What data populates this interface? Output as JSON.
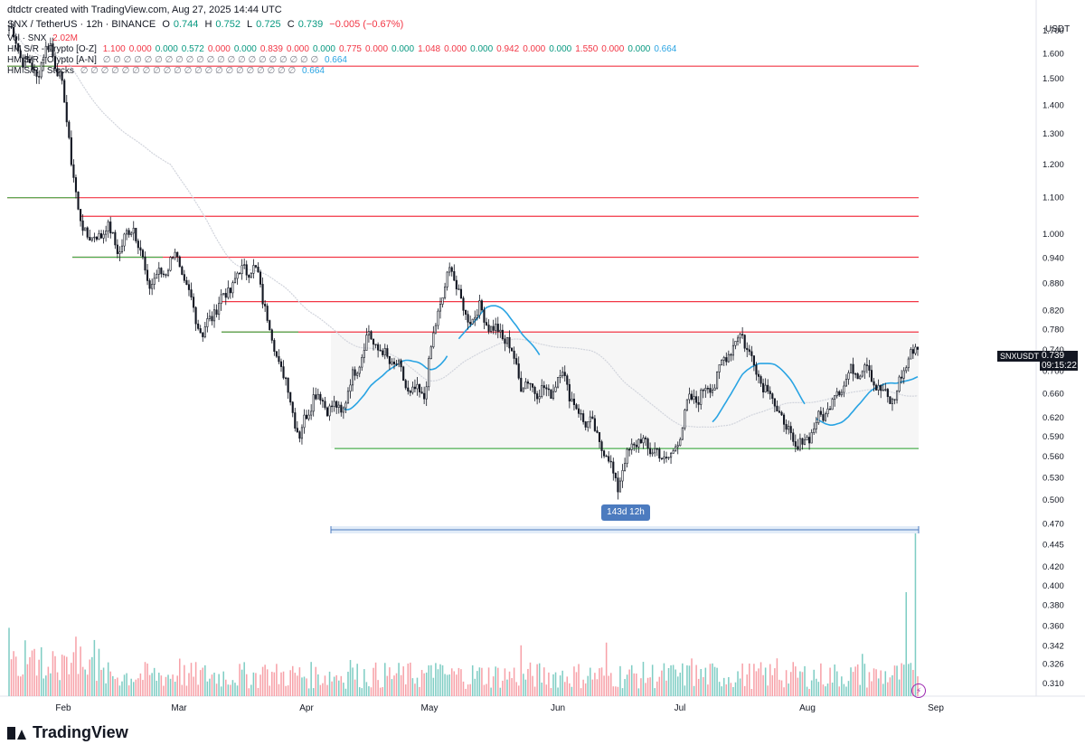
{
  "header": {
    "credit": "dtdctr created with TradingView.com, Aug 27, 2025 14:44 UTC",
    "symbol": "SNX / TetherUS · 12h · BINANCE",
    "ohlc": {
      "o_label": "O",
      "o": "0.744",
      "h_label": "H",
      "h": "0.752",
      "l_label": "L",
      "l": "0.725",
      "c_label": "C",
      "c": "0.739",
      "change": "−0.005 (−0.67%)"
    },
    "volume_label": "Vol · SNX",
    "volume_value": "2.02M",
    "indicators": [
      {
        "name": "HM S/R - Crypto [O-Z]",
        "values": [
          {
            "v": "1.100",
            "c": "red"
          },
          {
            "v": "0.000",
            "c": "red"
          },
          {
            "v": "0.000",
            "c": "green"
          },
          {
            "v": "0.572",
            "c": "green"
          },
          {
            "v": "0.000",
            "c": "red"
          },
          {
            "v": "0.000",
            "c": "green"
          },
          {
            "v": "0.839",
            "c": "red"
          },
          {
            "v": "0.000",
            "c": "red"
          },
          {
            "v": "0.000",
            "c": "green"
          },
          {
            "v": "0.775",
            "c": "red"
          },
          {
            "v": "0.000",
            "c": "red"
          },
          {
            "v": "0.000",
            "c": "green"
          },
          {
            "v": "1.048",
            "c": "red"
          },
          {
            "v": "0.000",
            "c": "red"
          },
          {
            "v": "0.000",
            "c": "green"
          },
          {
            "v": "0.942",
            "c": "red"
          },
          {
            "v": "0.000",
            "c": "red"
          },
          {
            "v": "0.000",
            "c": "green"
          },
          {
            "v": "1.550",
            "c": "red"
          },
          {
            "v": "0.000",
            "c": "red"
          },
          {
            "v": "0.000",
            "c": "green"
          },
          {
            "v": "0.664",
            "c": "blue"
          }
        ]
      },
      {
        "name": "HM S/R - Crypto [A-N]",
        "empty_glyphs": "∅ ∅ ∅ ∅ ∅ ∅ ∅ ∅ ∅ ∅ ∅ ∅ ∅ ∅ ∅ ∅ ∅ ∅ ∅ ∅ ∅",
        "value": "0.664"
      },
      {
        "name": "HM S/R - Stocks",
        "empty_glyphs": "∅ ∅ ∅ ∅ ∅ ∅ ∅ ∅ ∅ ∅ ∅ ∅ ∅ ∅ ∅ ∅ ∅ ∅ ∅ ∅ ∅",
        "value": "0.664"
      }
    ]
  },
  "price_scale_currency": "USDT",
  "price_tag": {
    "symbol": "SNXUSDT",
    "price": "0.739",
    "countdown": "09:15:22"
  },
  "measure_label": "143d 12h",
  "branding": "TradingView",
  "colors": {
    "up": "#089981",
    "down": "#f23645",
    "candle": "#131722",
    "ma": "#2aa4e3",
    "resistance": "#f23645",
    "support": "#4caf50"
  },
  "chart_data": {
    "type": "candlestick",
    "y_scale": "log",
    "y_ticks": [
      1.7,
      1.6,
      1.5,
      1.4,
      1.3,
      1.2,
      1.1,
      1.0,
      0.94,
      0.88,
      0.82,
      0.78,
      0.74,
      0.7,
      0.66,
      0.62,
      0.59,
      0.56,
      0.53,
      0.5,
      0.47,
      0.445,
      0.42,
      0.4,
      0.38,
      0.36,
      0.342,
      0.326,
      0.31
    ],
    "x_ticks": [
      "Feb",
      "Mar",
      "Apr",
      "May",
      "Jun",
      "Jul",
      "Aug",
      "Sep"
    ],
    "horizontal_levels": [
      {
        "price": 1.55,
        "kind": "resistance"
      },
      {
        "price": 1.1,
        "kind": "resistance"
      },
      {
        "price": 1.048,
        "kind": "resistance"
      },
      {
        "price": 0.942,
        "kind": "resistance"
      },
      {
        "price": 0.839,
        "kind": "resistance"
      },
      {
        "price": 0.775,
        "kind": "resistance"
      },
      {
        "price": 0.572,
        "kind": "support"
      }
    ],
    "range_box": {
      "top": 0.775,
      "bottom": 0.572
    },
    "price_anchors": [
      [
        0,
        1.72
      ],
      [
        6,
        1.58
      ],
      [
        12,
        1.52
      ],
      [
        18,
        1.65
      ],
      [
        24,
        1.42
      ],
      [
        30,
        1.05
      ],
      [
        36,
        0.98
      ],
      [
        42,
        1.02
      ],
      [
        48,
        0.96
      ],
      [
        54,
        1.03
      ],
      [
        60,
        0.88
      ],
      [
        66,
        0.9
      ],
      [
        72,
        0.95
      ],
      [
        78,
        0.85
      ],
      [
        84,
        0.77
      ],
      [
        90,
        0.83
      ],
      [
        96,
        0.87
      ],
      [
        102,
        0.92
      ],
      [
        108,
        0.9
      ],
      [
        114,
        0.76
      ],
      [
        120,
        0.68
      ],
      [
        126,
        0.59
      ],
      [
        132,
        0.66
      ],
      [
        138,
        0.64
      ],
      [
        144,
        0.63
      ],
      [
        150,
        0.7
      ],
      [
        156,
        0.77
      ],
      [
        162,
        0.73
      ],
      [
        168,
        0.71
      ],
      [
        174,
        0.66
      ],
      [
        180,
        0.66
      ],
      [
        186,
        0.82
      ],
      [
        192,
        0.92
      ],
      [
        198,
        0.8
      ],
      [
        204,
        0.82
      ],
      [
        210,
        0.78
      ],
      [
        216,
        0.76
      ],
      [
        222,
        0.68
      ],
      [
        228,
        0.67
      ],
      [
        234,
        0.66
      ],
      [
        240,
        0.7
      ],
      [
        246,
        0.63
      ],
      [
        252,
        0.61
      ],
      [
        258,
        0.57
      ],
      [
        264,
        0.52
      ],
      [
        270,
        0.58
      ],
      [
        276,
        0.58
      ],
      [
        282,
        0.56
      ],
      [
        288,
        0.56
      ],
      [
        294,
        0.64
      ],
      [
        300,
        0.66
      ],
      [
        306,
        0.68
      ],
      [
        312,
        0.74
      ],
      [
        318,
        0.77
      ],
      [
        324,
        0.7
      ],
      [
        330,
        0.66
      ],
      [
        336,
        0.61
      ],
      [
        342,
        0.57
      ],
      [
        348,
        0.6
      ],
      [
        354,
        0.63
      ],
      [
        360,
        0.67
      ],
      [
        366,
        0.7
      ],
      [
        372,
        0.71
      ],
      [
        378,
        0.66
      ],
      [
        384,
        0.65
      ],
      [
        390,
        0.73
      ],
      [
        394,
        0.739
      ]
    ],
    "volume_note": "volume bars at bottom, spike near latest bars"
  }
}
